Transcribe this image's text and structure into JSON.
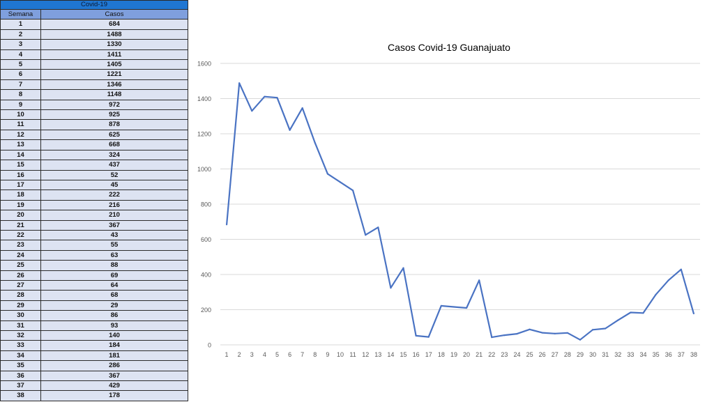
{
  "table": {
    "title": "Covid-19",
    "headers": [
      "Semana",
      "Casos"
    ],
    "rows": [
      [
        "1",
        "684"
      ],
      [
        "2",
        "1488"
      ],
      [
        "3",
        "1330"
      ],
      [
        "4",
        "1411"
      ],
      [
        "5",
        "1405"
      ],
      [
        "6",
        "1221"
      ],
      [
        "7",
        "1346"
      ],
      [
        "8",
        "1148"
      ],
      [
        "9",
        "972"
      ],
      [
        "10",
        "925"
      ],
      [
        "11",
        "878"
      ],
      [
        "12",
        "625"
      ],
      [
        "13",
        "668"
      ],
      [
        "14",
        "324"
      ],
      [
        "15",
        "437"
      ],
      [
        "16",
        "52"
      ],
      [
        "17",
        "45"
      ],
      [
        "18",
        "222"
      ],
      [
        "19",
        "216"
      ],
      [
        "20",
        "210"
      ],
      [
        "21",
        "367"
      ],
      [
        "22",
        "43"
      ],
      [
        "23",
        "55"
      ],
      [
        "24",
        "63"
      ],
      [
        "25",
        "88"
      ],
      [
        "26",
        "69"
      ],
      [
        "27",
        "64"
      ],
      [
        "28",
        "68"
      ],
      [
        "29",
        "29"
      ],
      [
        "30",
        "86"
      ],
      [
        "31",
        "93"
      ],
      [
        "32",
        "140"
      ],
      [
        "33",
        "184"
      ],
      [
        "34",
        "181"
      ],
      [
        "35",
        "286"
      ],
      [
        "36",
        "367"
      ],
      [
        "37",
        "429"
      ],
      [
        "38",
        "178"
      ]
    ]
  },
  "chart_data": {
    "type": "line",
    "title": "Casos Covid-19 Guanajuato",
    "xlabel": "",
    "ylabel": "",
    "x": [
      1,
      2,
      3,
      4,
      5,
      6,
      7,
      8,
      9,
      10,
      11,
      12,
      13,
      14,
      15,
      16,
      17,
      18,
      19,
      20,
      21,
      22,
      23,
      24,
      25,
      26,
      27,
      28,
      29,
      30,
      31,
      32,
      33,
      34,
      35,
      36,
      37,
      38
    ],
    "series": [
      {
        "values": [
          684,
          1488,
          1330,
          1411,
          1405,
          1221,
          1346,
          1148,
          972,
          925,
          878,
          625,
          668,
          324,
          437,
          52,
          45,
          222,
          216,
          210,
          367,
          43,
          55,
          63,
          88,
          69,
          64,
          68,
          29,
          86,
          93,
          140,
          184,
          181,
          286,
          367,
          429,
          178
        ]
      }
    ],
    "ylim": [
      0,
      1600
    ],
    "yticks": [
      0,
      200,
      400,
      600,
      800,
      1000,
      1200,
      1400,
      1600
    ],
    "grid": true,
    "legend": "none",
    "colors": {
      "line": "#4a73c3",
      "grid": "#d9d9d9",
      "axis_text": "#595959",
      "title": "#404040"
    }
  }
}
